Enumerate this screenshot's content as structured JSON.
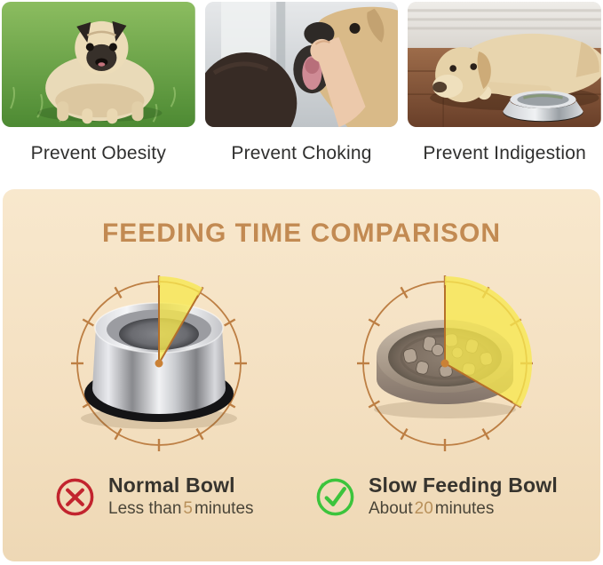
{
  "benefits": [
    {
      "label": "Prevent Obesity",
      "photo_alt": "overweight pug standing on grass"
    },
    {
      "label": "Prevent Choking",
      "photo_alt": "hand checking golden retriever open mouth"
    },
    {
      "label": "Prevent Indigestion",
      "photo_alt": "labrador lying on floor beside steel bowl"
    }
  ],
  "comparison": {
    "title": "FEEDING TIME COMPARISON",
    "items": [
      {
        "name": "Normal Bowl",
        "time_prefix": "Less than",
        "time_value": "5",
        "time_suffix": "minutes",
        "minutes": 5,
        "verdict": "negative"
      },
      {
        "name": "Slow Feeding Bowl",
        "time_prefix": "About",
        "time_value": "20",
        "time_suffix": "minutes",
        "minutes": 20,
        "verdict": "positive"
      }
    ]
  },
  "colors": {
    "panel_bg": "#f6e3c6",
    "accent_title": "#c28a52",
    "clock_ring": "#bd7f44",
    "wedge_yellow": "#f7e84e",
    "hand_orange": "#b5702a",
    "negative_red": "#c2242e",
    "positive_green": "#3cc43c",
    "time_highlight": "#b8905a",
    "text_dark": "#2f2f2e"
  }
}
